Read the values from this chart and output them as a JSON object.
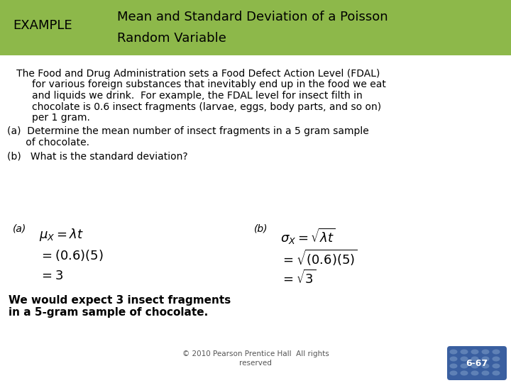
{
  "header_bg_color": "#8db84a",
  "header_text_color": "#000000",
  "example_label": "EXAMPLE",
  "title_line1": "Mean and Standard Deviation of a Poisson",
  "title_line2": "Random Variable",
  "body_bg": "#ffffff",
  "part_a_text1": "(a)  Determine the mean number of insect fragments in a 5 gram sample",
  "part_a_text2": "      of chocolate.",
  "part_b_text": "(b)   What is the standard deviation?",
  "math_a_label": "(a)",
  "math_b_label": "(b)",
  "conclusion1": "We would expect 3 insect fragments",
  "conclusion2": "in a 5-gram sample of chocolate.",
  "footer1": "© 2010 Pearson Prentice Hall  All rights",
  "footer2": "reserved",
  "page_num": "6-67",
  "page_bg": "#3a5fa0",
  "dot_color": "#6688bb",
  "font_color": "#000000",
  "header_font_size": 13,
  "body_font_size": 10,
  "math_font_size": 13,
  "label_font_size": 10
}
